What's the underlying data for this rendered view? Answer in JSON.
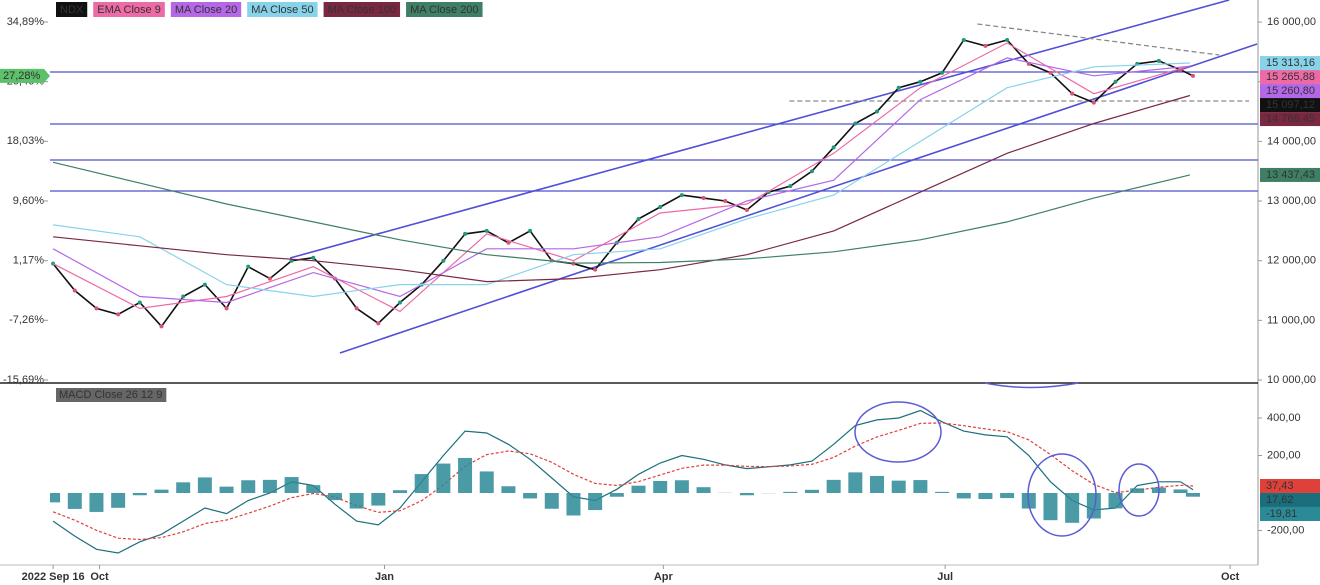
{
  "chart_data": [
    {
      "type": "line",
      "x": [
        0,
        7,
        14,
        21,
        28,
        35,
        42,
        49,
        56,
        63,
        70,
        77,
        84,
        91,
        98,
        105,
        112,
        119,
        126,
        133,
        140,
        147,
        154,
        161,
        168,
        175,
        182,
        189,
        196,
        203,
        210,
        217,
        224,
        231,
        238,
        245,
        252,
        259,
        266,
        273,
        280,
        287,
        294,
        301,
        308,
        315,
        322,
        329,
        336,
        343,
        350,
        357,
        364,
        368
      ],
      "xlim": [
        -1,
        389
      ],
      "ylim": [
        9950,
        16370
      ],
      "yticks": [
        {
          "value": 10000,
          "label": "10 000,00"
        },
        {
          "value": 11000,
          "label": "11 000,00"
        },
        {
          "value": 12000,
          "label": "12 000,00"
        },
        {
          "value": 13000,
          "label": "13 000,00"
        },
        {
          "value": 14000,
          "label": "14 000,00"
        },
        {
          "value": 15000,
          "label": "15 000,00"
        },
        {
          "value": 16000,
          "label": "16 000,00"
        }
      ],
      "y2lim": [
        -16.12,
        38.0
      ],
      "y2ticks": [
        {
          "value": -15.69,
          "label": "-15,69%"
        },
        {
          "value": -7.26,
          "label": "-7,26%"
        },
        {
          "value": 1.17,
          "label": "1,17%"
        },
        {
          "value": 9.6,
          "label": "9,60%"
        },
        {
          "value": 18.03,
          "label": "18,03%"
        },
        {
          "value": 26.46,
          "label": "26,46%"
        },
        {
          "value": 34.89,
          "label": "34,89%"
        }
      ],
      "current_pct": {
        "value": 27.28,
        "label": "27,28%"
      },
      "series": [
        {
          "name": "NDX",
          "color": "#111111",
          "last_label": "15 097,12",
          "values": [
            11950,
            11500,
            11200,
            11100,
            11300,
            10900,
            11400,
            11600,
            11200,
            11900,
            11700,
            12000,
            12050,
            11700,
            11200,
            10950,
            11300,
            11600,
            12000,
            12450,
            12500,
            12300,
            12500,
            12000,
            11950,
            11850,
            12300,
            12700,
            12900,
            13100,
            13050,
            13000,
            12850,
            13150,
            13250,
            13500,
            13900,
            14300,
            14500,
            14900,
            15000,
            15150,
            15700,
            15600,
            15700,
            15300,
            15150,
            14800,
            14650,
            15000,
            15300,
            15350,
            15200,
            15097.12
          ]
        },
        {
          "name": "EMA Close 9",
          "color": "#ee6aa7",
          "last_label": "15 265,88",
          "x": [
            0,
            28,
            56,
            84,
            112,
            140,
            168,
            196,
            224,
            252,
            280,
            308,
            336,
            367
          ],
          "values": [
            11950,
            11200,
            11400,
            11900,
            11150,
            12450,
            12000,
            12800,
            12950,
            13800,
            14900,
            15650,
            14800,
            15265.88
          ]
        },
        {
          "name": "MA Close 20",
          "color": "#b467e6",
          "last_label": "15 260,80",
          "x": [
            0,
            28,
            56,
            84,
            112,
            140,
            168,
            196,
            224,
            252,
            280,
            308,
            336,
            367
          ],
          "values": [
            12200,
            11400,
            11300,
            11800,
            11400,
            12200,
            12200,
            12400,
            13000,
            13350,
            14700,
            15400,
            15100,
            15260.8
          ]
        },
        {
          "name": "MA Close 50",
          "color": "#86d3ea",
          "last_label": "15 313,16",
          "x": [
            0,
            28,
            56,
            84,
            112,
            140,
            168,
            196,
            224,
            252,
            280,
            308,
            336,
            367
          ],
          "values": [
            12600,
            12400,
            11600,
            11400,
            11600,
            11600,
            12100,
            12200,
            12700,
            13100,
            14000,
            14900,
            15250,
            15313.16
          ]
        },
        {
          "name": "MA Close 100",
          "color": "#7a2842",
          "last_label": "14 768,45",
          "x": [
            0,
            28,
            56,
            84,
            112,
            140,
            168,
            196,
            224,
            252,
            280,
            308,
            336,
            367
          ],
          "values": [
            12400,
            12250,
            12100,
            12000,
            11850,
            11650,
            11700,
            11850,
            12100,
            12500,
            13150,
            13800,
            14300,
            14768.45
          ]
        },
        {
          "name": "MA Close 200",
          "color": "#3f7f66",
          "last_label": "13 437,43",
          "x": [
            0,
            28,
            56,
            84,
            112,
            140,
            168,
            196,
            224,
            252,
            280,
            308,
            336,
            367
          ],
          "values": [
            13650,
            13300,
            12950,
            12650,
            12350,
            12100,
            11960,
            11970,
            12030,
            12150,
            12350,
            12650,
            13050,
            13437.43
          ]
        }
      ],
      "hlines": [
        15163,
        14291,
        13688,
        13168
      ],
      "trendlines": [
        {
          "x": [
            76.5,
            379.7
          ],
          "y": [
            12045,
            16370
          ],
          "style": "solid"
        },
        {
          "x": [
            92.6,
            388.7
          ],
          "y": [
            10453,
            15632
          ],
          "style": "solid"
        },
        {
          "x": [
            298.4,
            376.5
          ],
          "y": [
            15968,
            15448
          ],
          "style": "dashed"
        },
        {
          "x": [
            237.7,
            386.1
          ],
          "y": [
            14677,
            14677
          ],
          "style": "dashed"
        }
      ]
    },
    {
      "type": "macd",
      "title": "MACD Close 26 12 9",
      "x": [
        0,
        7,
        14,
        21,
        28,
        35,
        42,
        49,
        56,
        63,
        70,
        77,
        84,
        91,
        98,
        105,
        112,
        119,
        126,
        133,
        140,
        147,
        154,
        161,
        168,
        175,
        182,
        189,
        196,
        203,
        210,
        217,
        224,
        231,
        238,
        245,
        252,
        259,
        266,
        273,
        280,
        287,
        294,
        301,
        308,
        315,
        322,
        329,
        336,
        343,
        350,
        357,
        364,
        368
      ],
      "xlim": [
        -1,
        389
      ],
      "xticks": [
        {
          "value": 0,
          "label": "2022 Sep 16"
        },
        {
          "value": 15,
          "label": "Oct"
        },
        {
          "value": 107,
          "label": "Jan"
        },
        {
          "value": 197,
          "label": "Apr"
        },
        {
          "value": 288,
          "label": "Jul"
        },
        {
          "value": 380,
          "label": "Oct"
        }
      ],
      "ylim": [
        -384,
        576
      ],
      "yticks": [
        {
          "value": -200,
          "label": "-200,00"
        },
        {
          "value": 200,
          "label": "200,00"
        },
        {
          "value": 400,
          "label": "400,00"
        }
      ],
      "series": [
        {
          "name": "MACD",
          "color": "#1b6f7c",
          "kind": "line",
          "last_label": "17,62",
          "values": [
            -150,
            -230,
            -300,
            -320,
            -260,
            -220,
            -150,
            -80,
            -110,
            -40,
            0,
            60,
            40,
            -60,
            -150,
            -170,
            -80,
            60,
            200,
            330,
            320,
            260,
            180,
            80,
            -20,
            -40,
            20,
            100,
            160,
            200,
            180,
            150,
            130,
            140,
            150,
            170,
            260,
            360,
            390,
            400,
            440,
            380,
            330,
            310,
            300,
            200,
            60,
            -40,
            -90,
            -80,
            40,
            60,
            60,
            17.62
          ]
        },
        {
          "name": "Signal",
          "color": "#e0403a",
          "kind": "dashed",
          "last_label": "37,43",
          "values": [
            -100,
            -145,
            -199,
            -241,
            -248,
            -238,
            -207,
            -163,
            -144,
            -108,
            -70,
            -25,
            -2,
            -22,
            -67,
            -103,
            -95,
            -41,
            43,
            143,
            205,
            224,
            209,
            164,
            100,
            51,
            40,
            61,
            96,
            132,
            149,
            149,
            142,
            141,
            144,
            153,
            190,
            250,
            299,
            334,
            371,
            374,
            359,
            342,
            327,
            283,
            205,
            119,
            46,
            2,
            15,
            31,
            41,
            37.43
          ]
        },
        {
          "name": "Histogram",
          "color": "#2b8a98",
          "kind": "bars",
          "last_label": "-19,81",
          "values": [
            -50,
            -85,
            -101,
            -79,
            -12,
            18,
            57,
            83,
            34,
            68,
            70,
            85,
            42,
            -38,
            -83,
            -67,
            15,
            101,
            157,
            187,
            115,
            36,
            -29,
            -84,
            -120,
            -91,
            -20,
            39,
            64,
            68,
            31,
            1,
            -12,
            -1,
            6,
            17,
            70,
            110,
            91,
            66,
            69,
            6,
            -29,
            -32,
            -27,
            -83,
            -145,
            -159,
            -136,
            -82,
            25,
            29,
            19,
            -19.81
          ]
        }
      ]
    }
  ]
}
